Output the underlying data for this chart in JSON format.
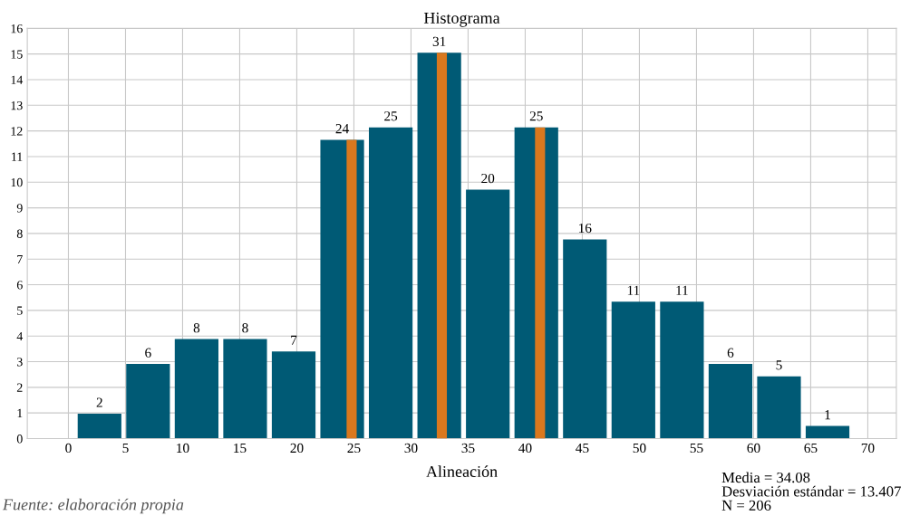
{
  "chart_data": {
    "type": "histogram",
    "title": "Histograma",
    "xlabel": "Alineación",
    "bins": [
      0.6,
      4.85,
      9.1,
      13.35,
      17.6,
      21.85,
      26.1,
      30.35,
      34.6,
      38.85,
      43.1,
      47.35,
      51.6,
      55.85,
      60.1,
      64.35,
      68.6
    ],
    "values": [
      0.97,
      2.91,
      3.88,
      3.88,
      3.4,
      11.65,
      12.14,
      15.05,
      9.71,
      12.14,
      7.77,
      5.34,
      5.34,
      2.91,
      2.43,
      0.49
    ],
    "color": "#005a75",
    "ref_lines": [
      {
        "axis": "x",
        "value": 24.8,
        "color": "#d9781e"
      },
      {
        "axis": "x",
        "value": 32.7,
        "color": "#d9781e"
      },
      {
        "axis": "x",
        "value": 41.3,
        "color": "#d9781e"
      }
    ],
    "xlim": [
      -3.6,
      72.5
    ],
    "ylim": [
      0,
      16
    ],
    "xticks": [
      0,
      5,
      10,
      15,
      20,
      25,
      30,
      35,
      40,
      45,
      50,
      55,
      60,
      65,
      70
    ],
    "yticks": [
      0,
      1,
      2,
      3,
      4,
      5,
      6,
      7,
      8,
      9,
      10,
      11,
      12,
      13,
      14,
      15,
      16
    ],
    "grid": true,
    "annotations": [
      {
        "text": "2",
        "x": 2.725,
        "y": 0.97
      },
      {
        "text": "6",
        "x": 6.975,
        "y": 2.91
      },
      {
        "text": "8",
        "x": 11.225,
        "y": 3.88
      },
      {
        "text": "8",
        "x": 15.475,
        "y": 3.88
      },
      {
        "text": "7",
        "x": 19.725,
        "y": 3.4
      },
      {
        "text": "24",
        "x": 23.975,
        "y": 11.65
      },
      {
        "text": "25",
        "x": 28.225,
        "y": 12.14
      },
      {
        "text": "31",
        "x": 32.475,
        "y": 15.05
      },
      {
        "text": "20",
        "x": 36.725,
        "y": 9.71
      },
      {
        "text": "25",
        "x": 40.975,
        "y": 12.14
      },
      {
        "text": "16",
        "x": 45.225,
        "y": 7.77
      },
      {
        "text": "11",
        "x": 49.475,
        "y": 5.34
      },
      {
        "text": "11",
        "x": 53.725,
        "y": 5.34
      },
      {
        "text": "6",
        "x": 57.975,
        "y": 2.91
      },
      {
        "text": "5",
        "x": 62.225,
        "y": 2.43
      },
      {
        "text": "1",
        "x": 66.475,
        "y": 0.49
      },
      "Media = 34.08",
      "Desviación estándar = 13.407",
      "N = 206",
      "Fuente: elaboración propia"
    ]
  }
}
